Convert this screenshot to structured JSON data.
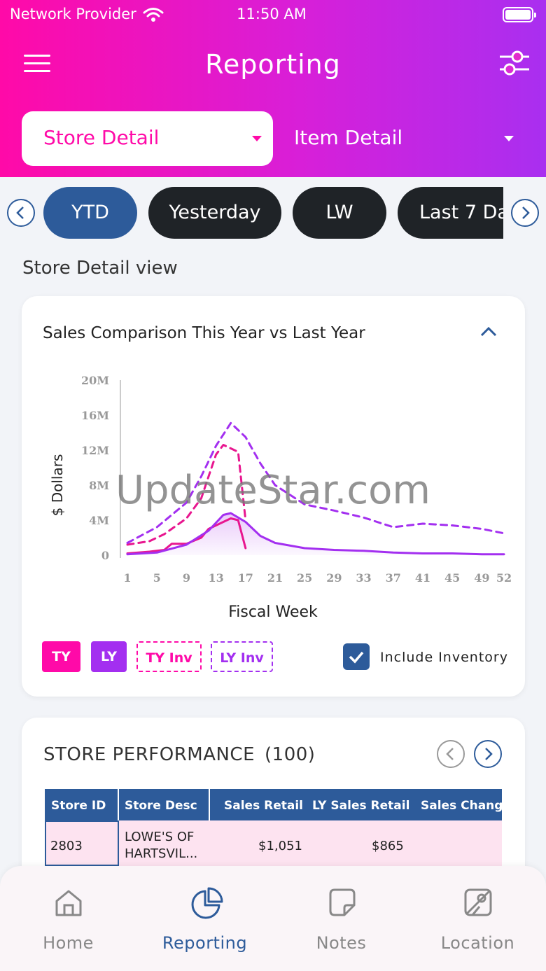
{
  "status_bar": {
    "provider": "Network Provider",
    "time": "11:50 AM"
  },
  "header": {
    "title": "Reporting"
  },
  "dropdowns": {
    "store": "Store Detail",
    "item": "Item Detail"
  },
  "periods": [
    "YTD",
    "Yesterday",
    "LW",
    "Last 7 Da"
  ],
  "section_title": "Store Detail view",
  "chart_data": {
    "type": "line",
    "title": "Sales Comparison This Year vs Last Year",
    "xlabel": "Fiscal Week",
    "ylabel": "$ Dollars",
    "x_ticks": [
      "1",
      "5",
      "9",
      "13",
      "17",
      "21",
      "25",
      "29",
      "33",
      "37",
      "41",
      "45",
      "49",
      "52"
    ],
    "y_ticks": [
      "0",
      "4M",
      "8M",
      "12M",
      "16M",
      "20M"
    ],
    "ylim": [
      0,
      20
    ],
    "xlim": [
      1,
      52
    ],
    "series": [
      {
        "name": "TY",
        "style": "solid",
        "color": "#e8168f",
        "points": [
          [
            1,
            0.2
          ],
          [
            4,
            0.4
          ],
          [
            6,
            0.6
          ],
          [
            7,
            1.3
          ],
          [
            9,
            1.3
          ],
          [
            11,
            2.0
          ],
          [
            12,
            3.0
          ],
          [
            14,
            3.8
          ],
          [
            15,
            4.2
          ],
          [
            16,
            4.0
          ],
          [
            17,
            0.8
          ]
        ]
      },
      {
        "name": "LY",
        "style": "solid",
        "color": "#a32ff0",
        "points": [
          [
            1,
            0.1
          ],
          [
            5,
            0.3
          ],
          [
            9,
            1.2
          ],
          [
            12,
            2.8
          ],
          [
            14,
            4.6
          ],
          [
            15,
            4.8
          ],
          [
            17,
            3.8
          ],
          [
            19,
            2.2
          ],
          [
            21,
            1.4
          ],
          [
            25,
            0.8
          ],
          [
            29,
            0.6
          ],
          [
            33,
            0.5
          ],
          [
            37,
            0.3
          ],
          [
            41,
            0.2
          ],
          [
            45,
            0.2
          ],
          [
            49,
            0.1
          ],
          [
            52,
            0.1
          ]
        ]
      },
      {
        "name": "TY Inv",
        "style": "dashed",
        "color": "#e8168f",
        "points": [
          [
            1,
            1.2
          ],
          [
            4,
            1.6
          ],
          [
            6,
            2.4
          ],
          [
            9,
            4.2
          ],
          [
            11,
            6.5
          ],
          [
            12,
            9.0
          ],
          [
            13,
            11.5
          ],
          [
            14,
            12.6
          ],
          [
            15,
            12.2
          ],
          [
            16,
            11.8
          ],
          [
            17,
            4.0
          ]
        ]
      },
      {
        "name": "LY Inv",
        "style": "dashed",
        "color": "#a32ff0",
        "points": [
          [
            1,
            1.4
          ],
          [
            5,
            3.2
          ],
          [
            9,
            6.0
          ],
          [
            11,
            9.0
          ],
          [
            13,
            12.5
          ],
          [
            15,
            15.1
          ],
          [
            17,
            13.5
          ],
          [
            19,
            10.5
          ],
          [
            21,
            8.0
          ],
          [
            25,
            5.8
          ],
          [
            29,
            5.1
          ],
          [
            33,
            4.3
          ],
          [
            37,
            3.2
          ],
          [
            41,
            3.6
          ],
          [
            45,
            3.4
          ],
          [
            49,
            3.0
          ],
          [
            52,
            2.5
          ]
        ]
      }
    ],
    "legend": [
      "TY",
      "LY",
      "TY Inv",
      "LY Inv"
    ],
    "include_inventory": {
      "label": "Include Inventory",
      "checked": true
    }
  },
  "performance": {
    "title": "STORE PERFORMANCE",
    "count": "(100)",
    "columns": [
      "Store ID",
      "Store Desc",
      "Sales Retail",
      "LY Sales Retail",
      "Sales Chang"
    ],
    "rows": [
      {
        "store_id": "2803",
        "desc_line1": "LOWE'S OF",
        "desc_line2": "HARTSVIL...",
        "sales_retail": "$1,051",
        "ly_sales_retail": "$865",
        "sales_change": ""
      }
    ]
  },
  "bottom_nav": {
    "home": "Home",
    "reporting": "Reporting",
    "notes": "Notes",
    "location": "Location"
  },
  "watermark": "UpdateStar.com",
  "colors": {
    "pink": "#ff0aa8",
    "purple": "#a92ff0",
    "navy": "#2d5b9a",
    "dark_pill": "#1f2327"
  }
}
